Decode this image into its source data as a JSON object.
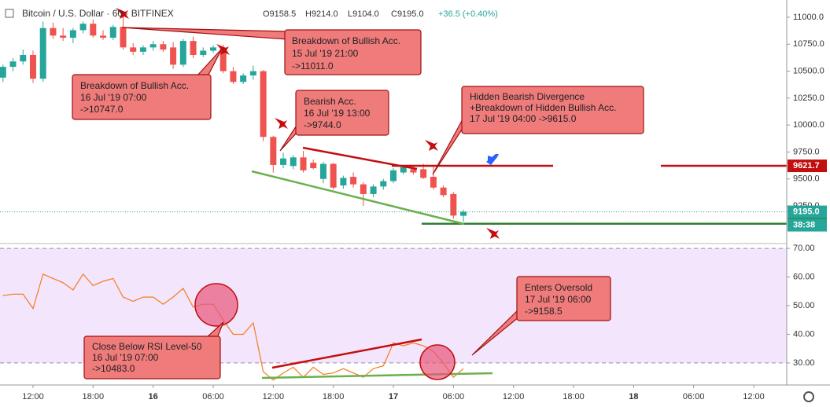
{
  "header": {
    "symbol": "Bitcoin / U.S. Dollar · 60 · BITFINEX",
    "ohlc": [
      "O9158.5",
      "H9214.0",
      "L9104.0",
      "C9195.0"
    ],
    "change": "+36.5 (+0.40%)"
  },
  "annotations": [
    [
      "Breakdown of Bullish Acc.",
      "15 Jul '19 21:00",
      "->11011.0"
    ],
    [
      "Breakdown of Bullish Acc.",
      "16 Jul '19 07:00",
      "->10747.0"
    ],
    [
      "Bearish Acc.",
      "16 Jul '19 13:00",
      "->9744.0"
    ],
    [
      "Hidden Bearish Divergence",
      "+Breakdown of Hidden Bullish Acc.",
      "17 Jul '19 04:00 ->9615.0"
    ],
    [
      "Enters Oversold",
      "17 Jul '19 06:00",
      "->9158.5"
    ],
    [
      "Close Below RSI Level-50",
      "16 Jul '19 07:00",
      "->10483.0"
    ]
  ],
  "chart_data": [
    {
      "type": "candlestick",
      "x": [
        9,
        10,
        11,
        12,
        13,
        14,
        15,
        16,
        17,
        18,
        19,
        20,
        21,
        22,
        23,
        24,
        25,
        26,
        27,
        28,
        29,
        30,
        31,
        32,
        33,
        34,
        35,
        36,
        37,
        38,
        39,
        40,
        41,
        42,
        43,
        44,
        45,
        46,
        47,
        48,
        49,
        50,
        51,
        52,
        53,
        54,
        55
      ],
      "open": [
        10440,
        10540,
        10590,
        10650,
        10430,
        10900,
        10830,
        10810,
        10880,
        10940,
        10830,
        10810,
        10910,
        10720,
        10680,
        10720,
        10750,
        10720,
        10560,
        10780,
        10650,
        10690,
        10720,
        10500,
        10400,
        10460,
        10500,
        9890,
        9630,
        9620,
        9700,
        9650,
        9500,
        9640,
        9440,
        9520,
        9450,
        9360,
        9430,
        9480,
        9560,
        9590,
        9590,
        9520,
        9420,
        9360,
        9158.5
      ],
      "high": [
        10560,
        10620,
        10700,
        10690,
        10960,
        10950,
        10900,
        10900,
        10960,
        10980,
        10880,
        10930,
        11011,
        10760,
        10740,
        10780,
        10780,
        10770,
        10800,
        10820,
        10720,
        10740,
        10747,
        10540,
        10480,
        10550,
        10510,
        9900,
        9744,
        9720,
        9760,
        9680,
        9660,
        9650,
        9530,
        9560,
        9470,
        9450,
        9500,
        9600,
        9630,
        9630,
        9640,
        9615,
        9440,
        9380,
        9214
      ],
      "low": [
        10400,
        10500,
        10560,
        10390,
        10400,
        10800,
        10780,
        10760,
        10850,
        10810,
        10790,
        10790,
        10700,
        10650,
        10650,
        10690,
        10680,
        10520,
        10540,
        10620,
        10630,
        10670,
        10480,
        10380,
        10380,
        10420,
        9850,
        9560,
        9600,
        9590,
        9560,
        9590,
        9460,
        9400,
        9410,
        9420,
        9250,
        9330,
        9400,
        9460,
        9540,
        9540,
        9500,
        9400,
        9330,
        9130,
        9104
      ],
      "close": [
        10540,
        10590,
        10650,
        10430,
        10900,
        10830,
        10810,
        10880,
        10940,
        10830,
        10810,
        10910,
        10720,
        10680,
        10720,
        10750,
        10700,
        10560,
        10780,
        10650,
        10690,
        10720,
        10500,
        10400,
        10460,
        10500,
        9890,
        9630,
        9690,
        9700,
        9580,
        9600,
        9640,
        9420,
        9510,
        9450,
        9360,
        9430,
        9480,
        9580,
        9610,
        9560,
        9510,
        9420,
        9350,
        9160,
        9195
      ],
      "up_color": "#26a69a",
      "down_color": "#ef5350",
      "xlim": [
        8.7,
        87.3
      ],
      "ylim": [
        8937,
        11160
      ],
      "yticks": [
        {
          "value": 11000,
          "label": "11000.0"
        },
        {
          "value": 10750,
          "label": "10750.0"
        },
        {
          "value": 10500,
          "label": "10500.0"
        },
        {
          "value": 10250,
          "label": "10250.0"
        },
        {
          "value": 10000,
          "label": "10000.0"
        },
        {
          "value": 9750,
          "label": "9750.0"
        },
        {
          "value": 9500,
          "label": "9500.0"
        },
        {
          "value": 9250,
          "label": "9250.0"
        }
      ],
      "levels": [
        {
          "value": 9621.7,
          "color": "#c40d0d"
        },
        {
          "value": 9084.7,
          "color": "#2e7d32"
        }
      ],
      "last_price": {
        "value": {
          "value": 9195,
          "label": "9195.0"
        },
        "countdown": "38:38",
        "color": "#26a69a"
      }
    },
    {
      "type": "line",
      "x": [
        9,
        10,
        11,
        12,
        13,
        14,
        15,
        16,
        17,
        18,
        19,
        20,
        21,
        22,
        23,
        24,
        25,
        26,
        27,
        28,
        29,
        30,
        31,
        32,
        33,
        34,
        35,
        36,
        37,
        38,
        39,
        40,
        41,
        42,
        43,
        44,
        45,
        46,
        47,
        48,
        49,
        50,
        51,
        52,
        53,
        54,
        55
      ],
      "values": [
        53.5,
        54,
        54,
        49,
        61,
        59.5,
        58,
        55.5,
        61,
        57,
        58.5,
        59.5,
        53,
        51.5,
        53,
        53,
        50.5,
        53,
        56,
        49.5,
        50.5,
        50.5,
        45,
        40,
        40,
        44,
        27,
        24,
        26.5,
        28.5,
        25,
        28.5,
        26,
        26.5,
        28,
        26.5,
        25,
        28,
        29,
        37,
        36,
        37,
        36,
        34,
        30,
        25,
        28
      ],
      "color": "#f57c20",
      "xlim": [
        8.7,
        87.3
      ],
      "ylim": [
        22.3,
        70.3
      ],
      "yticks": [
        {
          "value": 70,
          "label": "70.00"
        },
        {
          "value": 60,
          "label": "60.00"
        },
        {
          "value": 50,
          "label": "50.00"
        },
        {
          "value": 40,
          "label": "40.00"
        },
        {
          "value": 30,
          "label": "30.00"
        }
      ],
      "xticks": [
        {
          "value": 12,
          "label": "12:00"
        },
        {
          "value": 18,
          "label": "18:00"
        },
        {
          "value": 24,
          "label": "16"
        },
        {
          "value": 30,
          "label": "06:00"
        },
        {
          "value": 36,
          "label": "12:00"
        },
        {
          "value": 42,
          "label": "18:00"
        },
        {
          "value": 48,
          "label": "17"
        },
        {
          "value": 54,
          "label": "06:00"
        },
        {
          "value": 60,
          "label": "12:00"
        },
        {
          "value": 66,
          "label": "18:00"
        },
        {
          "value": 72,
          "label": "18"
        },
        {
          "value": 78,
          "label": "06:00"
        },
        {
          "value": 84,
          "label": "12:00"
        }
      ]
    }
  ]
}
